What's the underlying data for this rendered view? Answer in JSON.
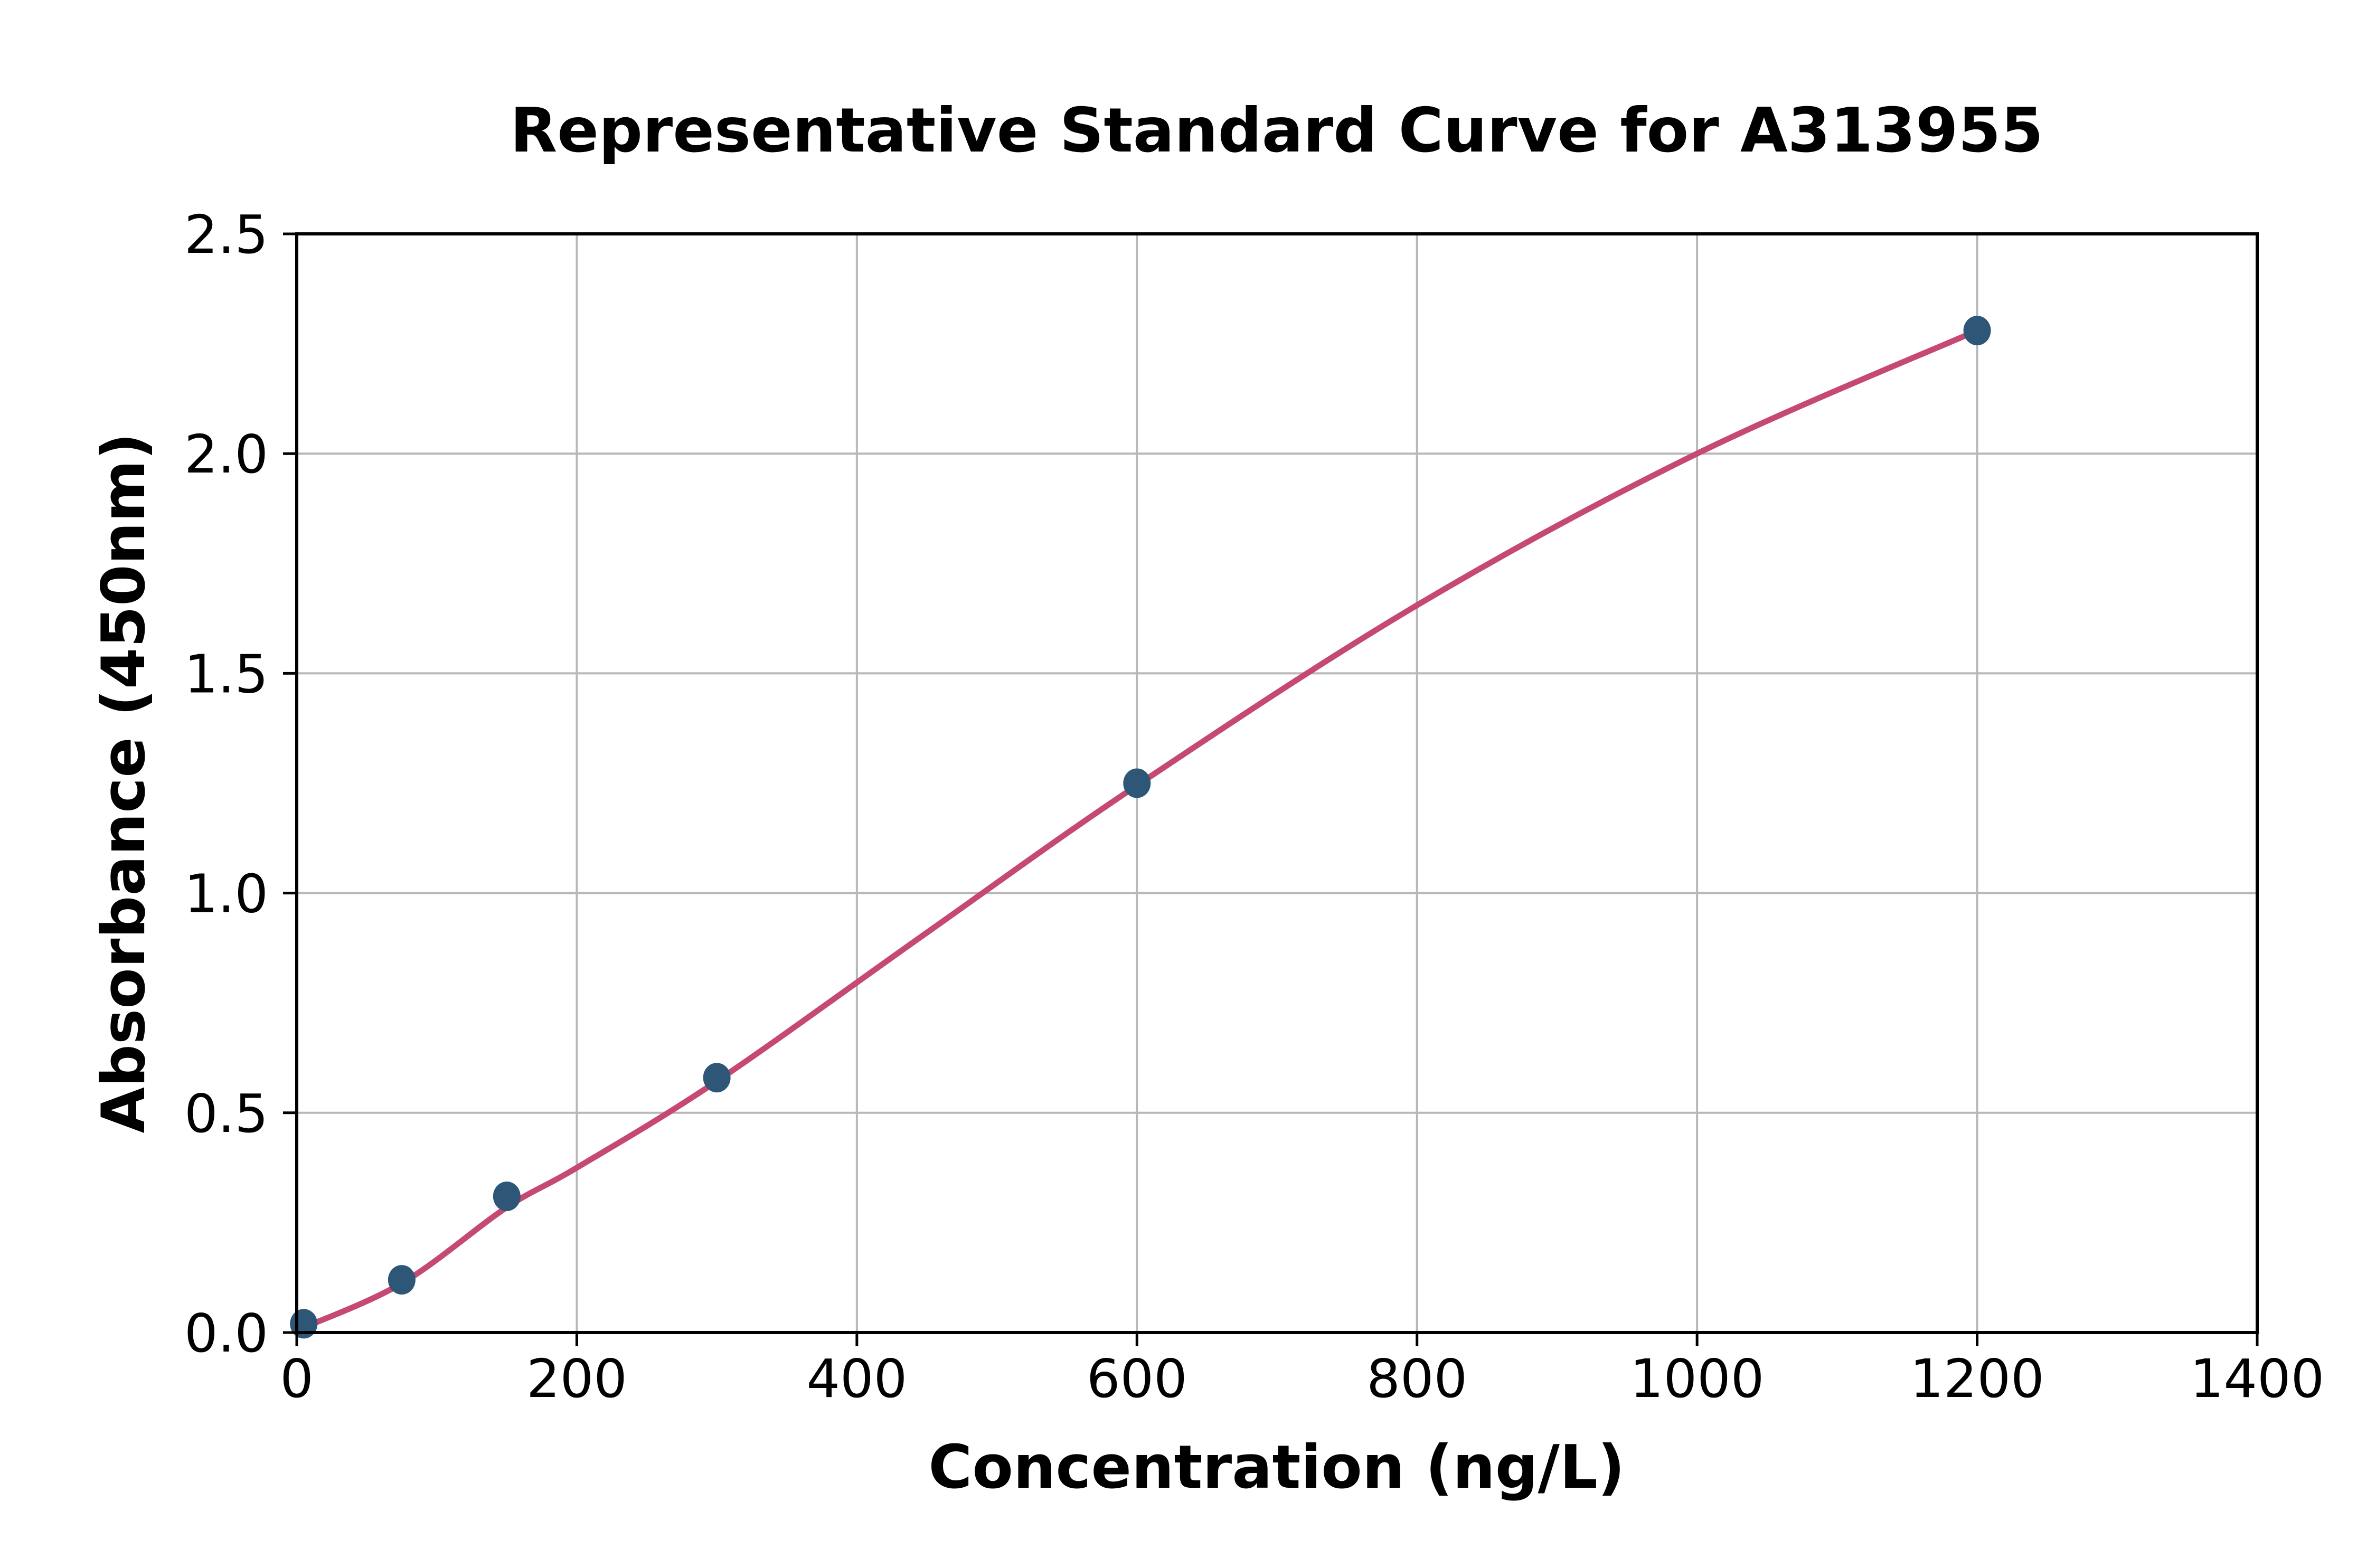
{
  "figure": {
    "title": "Representative Standard Curve for A313955",
    "x_axis_label": "Concentration (ng/L)",
    "y_axis_label": "Absorbance (450nm)"
  },
  "chart_data": {
    "type": "scatter",
    "title": "Representative Standard Curve for A313955",
    "xlabel": "Concentration (ng/L)",
    "ylabel": "Absorbance (450nm)",
    "xlim": [
      0,
      1400
    ],
    "ylim": [
      0,
      2.5
    ],
    "x_ticks": [
      "0",
      "200",
      "400",
      "600",
      "800",
      "1000",
      "1200",
      "1400"
    ],
    "x_tick_values": [
      0,
      200,
      400,
      600,
      800,
      1000,
      1200,
      1400
    ],
    "y_ticks": [
      "0.0",
      "0.5",
      "1.0",
      "1.5",
      "2.0",
      "2.5"
    ],
    "y_tick_values": [
      0,
      0.5,
      1.0,
      1.5,
      2.0,
      2.5
    ],
    "grid": true,
    "legend": null,
    "points": [
      {
        "x": 5,
        "y": 0.02
      },
      {
        "x": 75,
        "y": 0.12
      },
      {
        "x": 150,
        "y": 0.31
      },
      {
        "x": 300,
        "y": 0.58
      },
      {
        "x": 600,
        "y": 1.25
      },
      {
        "x": 1200,
        "y": 2.28
      }
    ],
    "fit_curve": [
      {
        "x": 0,
        "y": 0.005
      },
      {
        "x": 75,
        "y": 0.112
      },
      {
        "x": 150,
        "y": 0.285
      },
      {
        "x": 200,
        "y": 0.375
      },
      {
        "x": 300,
        "y": 0.572
      },
      {
        "x": 450,
        "y": 0.91
      },
      {
        "x": 600,
        "y": 1.245
      },
      {
        "x": 800,
        "y": 1.655
      },
      {
        "x": 1000,
        "y": 2.0
      },
      {
        "x": 1200,
        "y": 2.28
      }
    ],
    "colors": {
      "curve": "#c54971",
      "marker": "#2e5677",
      "grid": "#b8b8b8",
      "axis": "#000000",
      "background": "#ffffff"
    }
  }
}
